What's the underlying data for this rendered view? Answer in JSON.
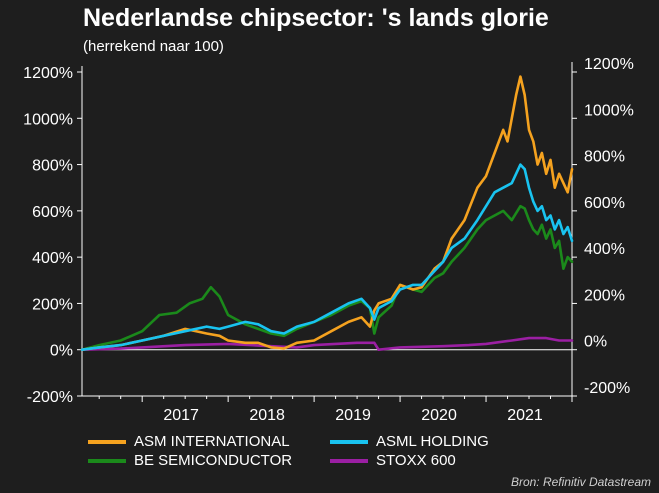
{
  "title": "Nederlandse chipsector: 's lands glorie",
  "subtitle": "(herrekend naar 100)",
  "source": "Bron: Refinitiv Datastream",
  "chart_data": {
    "type": "line",
    "xlim": [
      2016.3,
      2022.0
    ],
    "ylim": [
      -200,
      1200
    ],
    "x_ticks": [
      2017,
      2018,
      2019,
      2020,
      2021
    ],
    "x_tick_labels": [
      "2017",
      "2018",
      "2019",
      "2020",
      "2021"
    ],
    "y_ticks": [
      -200,
      0,
      200,
      400,
      600,
      800,
      1000,
      1200
    ],
    "y_tick_labels_left": [
      "-200%",
      "0%",
      "200%",
      "400%",
      "600%",
      "800%",
      "1000%",
      "1200%"
    ],
    "y_tick_labels_right": [
      "-200%",
      "0%",
      "200%",
      "400%",
      "600%",
      "800%",
      "1000%",
      "1200%"
    ],
    "zero_line": true,
    "grid": false,
    "legend_position": "bottom",
    "series": [
      {
        "name": "ASM INTERNATIONAL",
        "color": "#f5a21f",
        "x": [
          2016.3,
          2016.5,
          2016.75,
          2017.0,
          2017.25,
          2017.5,
          2017.75,
          2017.9,
          2018.0,
          2018.2,
          2018.35,
          2018.5,
          2018.65,
          2018.8,
          2019.0,
          2019.2,
          2019.4,
          2019.55,
          2019.65,
          2019.7,
          2019.75,
          2019.9,
          2020.0,
          2020.15,
          2020.25,
          2020.4,
          2020.5,
          2020.6,
          2020.75,
          2020.9,
          2021.0,
          2021.1,
          2021.2,
          2021.25,
          2021.3,
          2021.35,
          2021.4,
          2021.45,
          2021.5,
          2021.55,
          2021.6,
          2021.65,
          2021.7,
          2021.75,
          2021.8,
          2021.85,
          2021.9,
          2021.95,
          2022.0
        ],
        "y": [
          0,
          10,
          20,
          40,
          60,
          90,
          70,
          60,
          40,
          30,
          30,
          10,
          5,
          30,
          40,
          80,
          120,
          140,
          100,
          170,
          200,
          220,
          280,
          260,
          270,
          350,
          380,
          480,
          560,
          700,
          750,
          850,
          950,
          900,
          1000,
          1100,
          1180,
          1100,
          950,
          900,
          800,
          850,
          760,
          820,
          700,
          760,
          720,
          680,
          780
        ]
      },
      {
        "name": "ASML HOLDING",
        "color": "#19c3f0",
        "x": [
          2016.3,
          2016.5,
          2016.75,
          2017.0,
          2017.25,
          2017.5,
          2017.75,
          2017.9,
          2018.0,
          2018.2,
          2018.35,
          2018.5,
          2018.65,
          2018.8,
          2019.0,
          2019.2,
          2019.4,
          2019.55,
          2019.65,
          2019.7,
          2019.75,
          2019.9,
          2020.0,
          2020.15,
          2020.25,
          2020.4,
          2020.5,
          2020.6,
          2020.75,
          2020.9,
          2021.0,
          2021.1,
          2021.2,
          2021.3,
          2021.4,
          2021.45,
          2021.5,
          2021.55,
          2021.6,
          2021.65,
          2021.7,
          2021.75,
          2021.8,
          2021.85,
          2021.9,
          2021.95,
          2022.0
        ],
        "y": [
          0,
          10,
          20,
          40,
          60,
          80,
          100,
          90,
          100,
          120,
          110,
          80,
          70,
          100,
          120,
          160,
          200,
          220,
          180,
          130,
          180,
          210,
          260,
          280,
          280,
          340,
          380,
          440,
          480,
          560,
          620,
          680,
          700,
          720,
          800,
          780,
          700,
          640,
          600,
          620,
          560,
          580,
          520,
          560,
          500,
          530,
          470
        ]
      },
      {
        "name": "BE SEMICONDUCTOR",
        "color": "#1b8a1b",
        "x": [
          2016.3,
          2016.5,
          2016.75,
          2017.0,
          2017.2,
          2017.4,
          2017.55,
          2017.7,
          2017.8,
          2017.9,
          2018.0,
          2018.2,
          2018.35,
          2018.5,
          2018.65,
          2018.8,
          2019.0,
          2019.2,
          2019.4,
          2019.55,
          2019.65,
          2019.7,
          2019.75,
          2019.9,
          2020.0,
          2020.15,
          2020.25,
          2020.4,
          2020.5,
          2020.6,
          2020.75,
          2020.9,
          2021.0,
          2021.1,
          2021.2,
          2021.3,
          2021.4,
          2021.45,
          2021.5,
          2021.55,
          2021.6,
          2021.65,
          2021.7,
          2021.75,
          2021.8,
          2021.85,
          2021.9,
          2021.95,
          2022.0
        ],
        "y": [
          0,
          20,
          40,
          80,
          150,
          160,
          200,
          220,
          270,
          230,
          150,
          110,
          90,
          70,
          60,
          90,
          120,
          150,
          190,
          210,
          180,
          70,
          140,
          190,
          280,
          260,
          250,
          310,
          330,
          380,
          440,
          520,
          560,
          580,
          600,
          560,
          620,
          610,
          560,
          520,
          500,
          540,
          480,
          520,
          440,
          470,
          350,
          400,
          380
        ]
      },
      {
        "name": "STOXX 600",
        "color": "#9b1fa3",
        "x": [
          2016.3,
          2016.75,
          2017.0,
          2017.5,
          2018.0,
          2018.5,
          2018.8,
          2019.0,
          2019.5,
          2019.7,
          2019.75,
          2020.0,
          2020.5,
          2020.8,
          2021.0,
          2021.3,
          2021.5,
          2021.7,
          2021.85,
          2022.0
        ],
        "y": [
          0,
          5,
          10,
          20,
          25,
          15,
          10,
          20,
          30,
          30,
          0,
          10,
          15,
          20,
          25,
          40,
          50,
          50,
          40,
          40
        ]
      }
    ]
  }
}
